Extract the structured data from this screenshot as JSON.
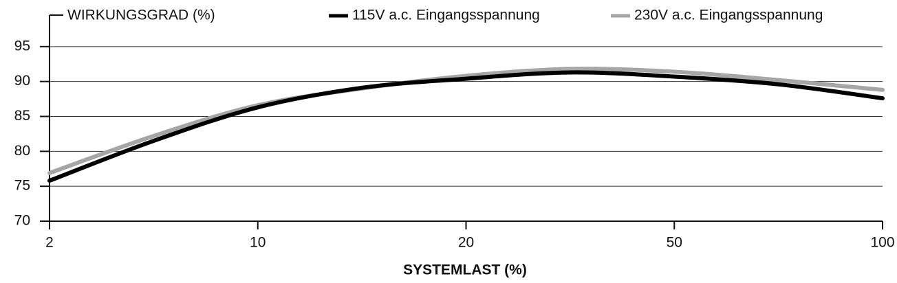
{
  "chart_data": {
    "type": "line",
    "y_axis_title": "WIRKUNGSGRAD (%)",
    "x_axis_title": "SYSTEMLAST (%)",
    "categories": [
      "2",
      null,
      "10",
      null,
      "20",
      null,
      "50",
      null,
      "100"
    ],
    "series": [
      {
        "name": "115V a.c. Eingangsspannung",
        "color": "#000000",
        "values": [
          75.8,
          81.5,
          86.3,
          89.1,
          90.4,
          91.3,
          90.7,
          89.6,
          87.6
        ]
      },
      {
        "name": "230V a.c. Eingangsspannung",
        "color": "#a6a6a6",
        "values": [
          76.9,
          82.2,
          86.6,
          89.0,
          90.8,
          91.8,
          91.4,
          90.2,
          88.8
        ]
      }
    ],
    "ylim": [
      70,
      100
    ],
    "yticks": [
      70,
      75,
      80,
      85,
      90,
      95
    ],
    "grid": true
  }
}
